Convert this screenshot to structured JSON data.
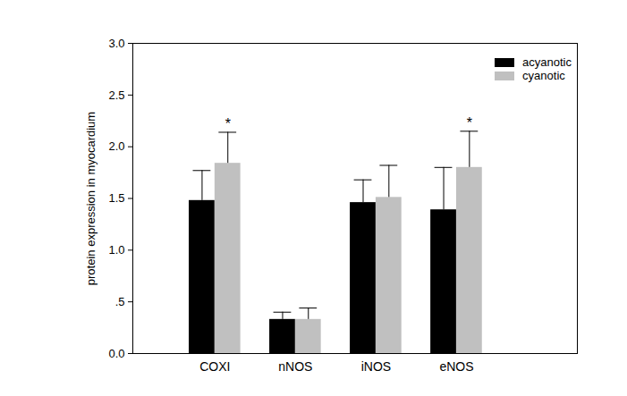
{
  "chart_data": {
    "type": "bar",
    "y_label": "protein expression in myocardium",
    "categories": [
      "COXI",
      "nNOS",
      "iNOS",
      "eNOS"
    ],
    "series": [
      {
        "name": "acyanotic",
        "color": "#000000",
        "values": [
          1.48,
          0.33,
          1.46,
          1.39
        ],
        "errors": [
          0.29,
          0.07,
          0.22,
          0.41
        ]
      },
      {
        "name": "cyanotic",
        "color": "#c0c0c0",
        "values": [
          1.84,
          0.33,
          1.51,
          1.8
        ],
        "errors": [
          0.3,
          0.11,
          0.31,
          0.35
        ]
      }
    ],
    "annotations": [
      {
        "category": "COXI",
        "series": "cyanotic",
        "text": "*"
      },
      {
        "category": "eNOS",
        "series": "cyanotic",
        "text": "*"
      }
    ],
    "ylim": [
      0,
      3
    ],
    "yticks": [
      {
        "value": 0,
        "label": "0.0"
      },
      {
        "value": 0.5,
        "label": ".5"
      },
      {
        "value": 1,
        "label": "1.0"
      },
      {
        "value": 1.5,
        "label": "1.5"
      },
      {
        "value": 2,
        "label": "2.0"
      },
      {
        "value": 2.5,
        "label": "2.5"
      },
      {
        "value": 3,
        "label": "3.0"
      }
    ],
    "grid": false,
    "legend": "upper right"
  }
}
